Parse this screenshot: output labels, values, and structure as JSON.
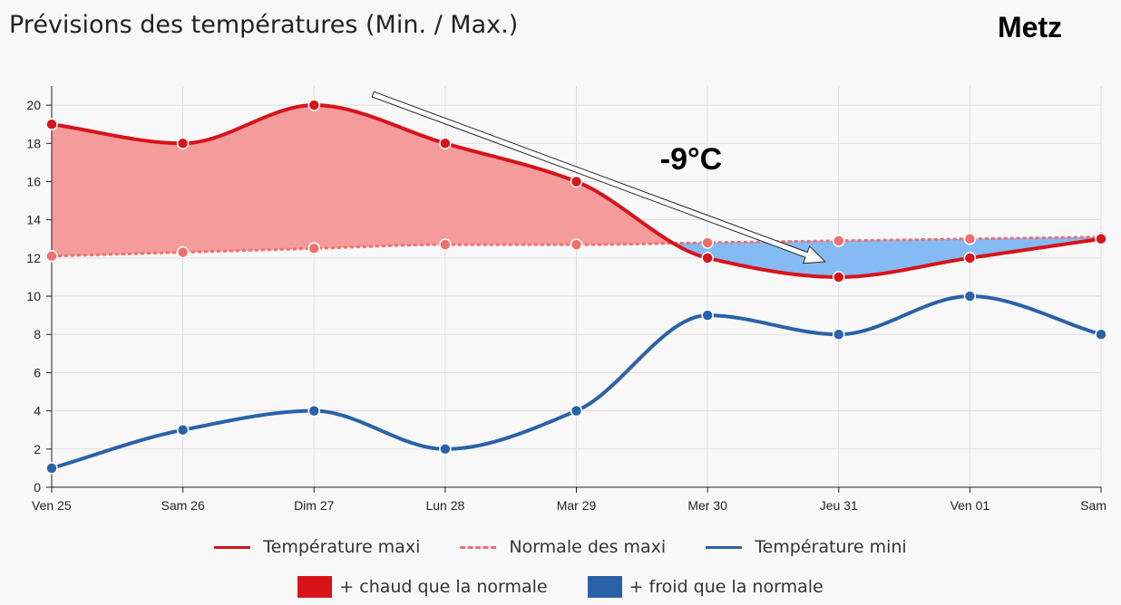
{
  "header": {
    "title": "Prévisions des températures (Min. / Max.)",
    "city": "Metz"
  },
  "colors": {
    "maxi": "#d7141a",
    "normale": "#f07070",
    "mini": "#2a62a8",
    "warm_fill": "#f49c9c",
    "cold_fill": "#84bbf4",
    "grid": "#dddddd",
    "axis": "#222222"
  },
  "annotation": {
    "text": "-9°C",
    "from_category": "Dim 27",
    "to_category": "Jeu 31"
  },
  "legend": {
    "maxi_label": "Température maxi",
    "normale_label": "Normale des maxi",
    "mini_label": "Température mini",
    "warm_label": "+ chaud que la normale",
    "cold_label": "+ froid que la normale",
    "warm_color": "#d7141a",
    "cold_color": "#2a62a8"
  },
  "chart_data": {
    "type": "line",
    "categories": [
      "Ven 25",
      "Sam 26",
      "Dim 27",
      "Lun 28",
      "Mar 29",
      "Mer 30",
      "Jeu 31",
      "Ven 01",
      "Sam"
    ],
    "series": [
      {
        "name": "Température maxi",
        "values": [
          19,
          18,
          20,
          18,
          16,
          12,
          11,
          12,
          13
        ]
      },
      {
        "name": "Normale des maxi",
        "values": [
          12.1,
          12.3,
          12.5,
          12.7,
          12.7,
          12.8,
          12.9,
          13.0,
          13.1
        ]
      },
      {
        "name": "Température mini",
        "values": [
          1,
          3,
          4,
          2,
          4,
          9,
          8,
          10,
          8
        ]
      }
    ],
    "ylim": [
      0,
      21
    ],
    "yticks": [
      0,
      2,
      4,
      6,
      8,
      10,
      12,
      14,
      16,
      18,
      20
    ],
    "grid": true,
    "legend_placement": "bottom"
  }
}
